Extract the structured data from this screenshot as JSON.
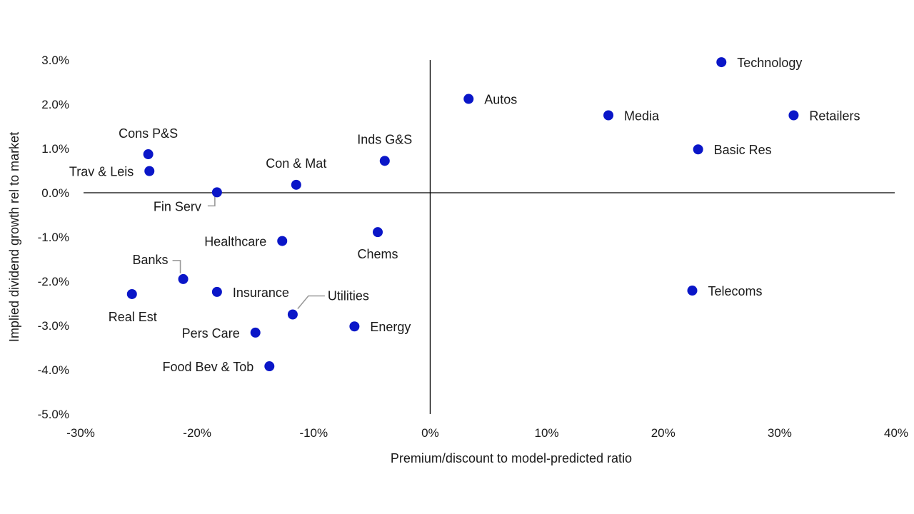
{
  "chart_data": {
    "type": "scatter",
    "title": "",
    "xlabel": "Premium/discount to model-predicted ratio",
    "ylabel": "Implied dividend growth rel to market",
    "xlim": [
      -30,
      40
    ],
    "ylim": [
      -5,
      3
    ],
    "x_unit": "%",
    "y_unit": "%",
    "x_ticks": [
      "-30%",
      "-20%",
      "-10%",
      "0%",
      "10%",
      "20%",
      "30%",
      "40%"
    ],
    "y_ticks": [
      "3.0%",
      "2.0%",
      "1.0%",
      "0.0%",
      "-1.0%",
      "-2.0%",
      "-3.0%",
      "-4.0%",
      "-5.0%"
    ],
    "grid": false,
    "marker_color": "#0a16c8",
    "points": [
      {
        "label": "Technology",
        "x": 25.0,
        "y": 2.95
      },
      {
        "label": "Autos",
        "x": 3.3,
        "y": 2.12
      },
      {
        "label": "Media",
        "x": 15.3,
        "y": 1.75
      },
      {
        "label": "Retailers",
        "x": 31.2,
        "y": 1.75
      },
      {
        "label": "Basic Res",
        "x": 23.0,
        "y": 0.98
      },
      {
        "label": "Inds G&S",
        "x": -3.9,
        "y": 0.72
      },
      {
        "label": "Cons P&S",
        "x": -24.2,
        "y": 0.87
      },
      {
        "label": "Trav & Leis",
        "x": -24.1,
        "y": 0.49
      },
      {
        "label": "Con & Mat",
        "x": -11.5,
        "y": 0.18
      },
      {
        "label": "Fin Serv",
        "x": -18.3,
        "y": 0.01
      },
      {
        "label": "Healthcare",
        "x": -12.7,
        "y": -1.09
      },
      {
        "label": "Chems",
        "x": -4.5,
        "y": -0.89
      },
      {
        "label": "Banks",
        "x": -21.2,
        "y": -1.95
      },
      {
        "label": "Insurance",
        "x": -18.3,
        "y": -2.24
      },
      {
        "label": "Real Est",
        "x": -25.6,
        "y": -2.29
      },
      {
        "label": "Utilities",
        "x": -11.8,
        "y": -2.75
      },
      {
        "label": "Telecoms",
        "x": 22.5,
        "y": -2.21
      },
      {
        "label": "Energy",
        "x": -6.5,
        "y": -3.02
      },
      {
        "label": "Pers Care",
        "x": -15.0,
        "y": -3.16
      },
      {
        "label": "Food Bev & Tob",
        "x": -13.8,
        "y": -3.92
      }
    ]
  }
}
